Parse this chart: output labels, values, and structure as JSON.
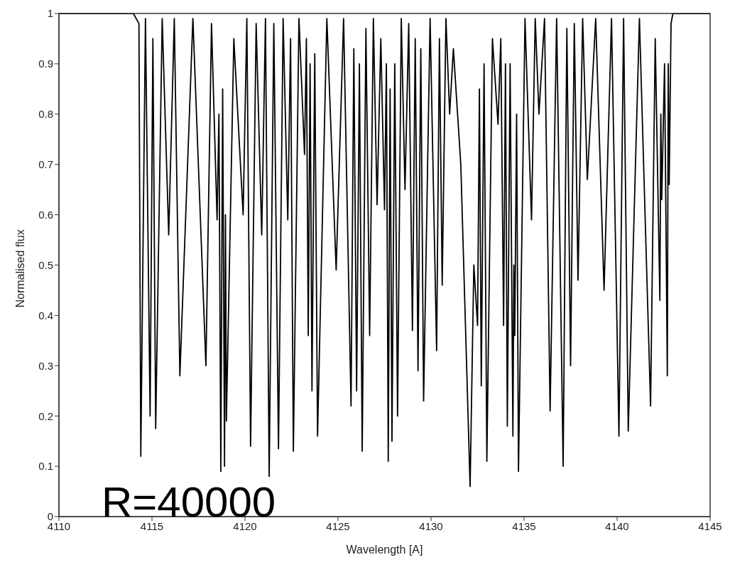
{
  "chart_data": {
    "type": "line",
    "xlabel": "Wavelength [A]",
    "ylabel": "Normalised flux",
    "annotations": [
      "R=40000"
    ],
    "xlim": [
      4110,
      4145
    ],
    "xticks": [
      4110,
      4115,
      4120,
      4125,
      4130,
      4135,
      4140,
      4145
    ],
    "ylim": [
      0,
      1
    ],
    "yticks": [
      0,
      0.1,
      0.2,
      0.3,
      0.4,
      0.5,
      0.6,
      0.7,
      0.8,
      0.9,
      1
    ],
    "grid": false,
    "legend": false,
    "marker": "none",
    "line_style": "solid",
    "x": [
      4110,
      4114.0,
      4114.3,
      4114.4,
      4114.65,
      4114.9,
      4115.05,
      4115.2,
      4115.55,
      4115.9,
      4116.2,
      4116.5,
      4117.2,
      4117.9,
      4118.2,
      4118.5,
      4118.6,
      4118.7,
      4118.8,
      4118.9,
      4118.95,
      4119.0,
      4119.4,
      4119.9,
      4120.1,
      4120.3,
      4120.6,
      4120.9,
      4121.1,
      4121.3,
      4121.55,
      4121.8,
      4122.05,
      4122.3,
      4122.45,
      4122.6,
      4122.9,
      4123.2,
      4123.3,
      4123.4,
      4123.5,
      4123.6,
      4123.75,
      4123.9,
      4124.4,
      4124.9,
      4125.3,
      4125.7,
      4125.85,
      4126.0,
      4126.15,
      4126.3,
      4126.5,
      4126.7,
      4126.9,
      4127.1,
      4127.3,
      4127.5,
      4127.6,
      4127.7,
      4127.8,
      4127.9,
      4128.05,
      4128.2,
      4128.4,
      4128.6,
      4128.8,
      4129.0,
      4129.15,
      4129.3,
      4129.45,
      4129.6,
      4129.95,
      4130.3,
      4130.45,
      4130.6,
      4130.8,
      4131.0,
      4131.2,
      4131.6,
      4132.1,
      4132.3,
      4132.5,
      4132.6,
      4132.7,
      4132.85,
      4133.0,
      4133.3,
      4133.6,
      4133.75,
      4133.9,
      4134.0,
      4134.1,
      4134.25,
      4134.4,
      4134.45,
      4134.5,
      4134.6,
      4134.7,
      4135.05,
      4135.4,
      4135.6,
      4135.8,
      4136.1,
      4136.4,
      4136.75,
      4137.1,
      4137.3,
      4137.5,
      4137.7,
      4137.9,
      4138.15,
      4138.4,
      4138.85,
      4139.3,
      4139.7,
      4140.1,
      4140.35,
      4140.6,
      4141.2,
      4141.8,
      4142.05,
      4142.3,
      4142.35,
      4142.4,
      4142.55,
      4142.7,
      4142.75,
      4142.8,
      4142.9,
      4143.0,
      4145
    ],
    "series": [
      {
        "color": "#000000",
        "values": [
          1,
          1,
          0.98,
          0.12,
          0.99,
          0.2,
          0.95,
          0.175,
          0.99,
          0.56,
          0.99,
          0.28,
          0.99,
          0.3,
          0.98,
          0.59,
          0.8,
          0.09,
          0.85,
          0.1,
          0.6,
          0.19,
          0.95,
          0.6,
          0.99,
          0.14,
          0.98,
          0.56,
          0.99,
          0.08,
          0.98,
          0.135,
          0.99,
          0.59,
          0.95,
          0.13,
          0.99,
          0.72,
          0.95,
          0.36,
          0.9,
          0.25,
          0.92,
          0.16,
          0.99,
          0.49,
          0.99,
          0.22,
          0.93,
          0.25,
          0.9,
          0.13,
          0.97,
          0.36,
          0.99,
          0.62,
          0.95,
          0.61,
          0.9,
          0.11,
          0.85,
          0.15,
          0.9,
          0.2,
          0.99,
          0.65,
          0.98,
          0.37,
          0.95,
          0.29,
          0.93,
          0.23,
          0.99,
          0.33,
          0.95,
          0.46,
          0.99,
          0.8,
          0.93,
          0.7,
          0.06,
          0.5,
          0.38,
          0.85,
          0.26,
          0.9,
          0.11,
          0.95,
          0.78,
          0.95,
          0.38,
          0.9,
          0.18,
          0.9,
          0.16,
          0.5,
          0.36,
          0.8,
          0.09,
          0.99,
          0.59,
          0.99,
          0.8,
          0.99,
          0.21,
          0.99,
          0.1,
          0.97,
          0.3,
          0.98,
          0.47,
          0.99,
          0.67,
          0.99,
          0.45,
          0.99,
          0.16,
          0.99,
          0.17,
          0.99,
          0.22,
          0.95,
          0.43,
          0.8,
          0.63,
          0.9,
          0.28,
          0.9,
          0.66,
          0.98,
          1,
          1
        ]
      }
    ]
  }
}
